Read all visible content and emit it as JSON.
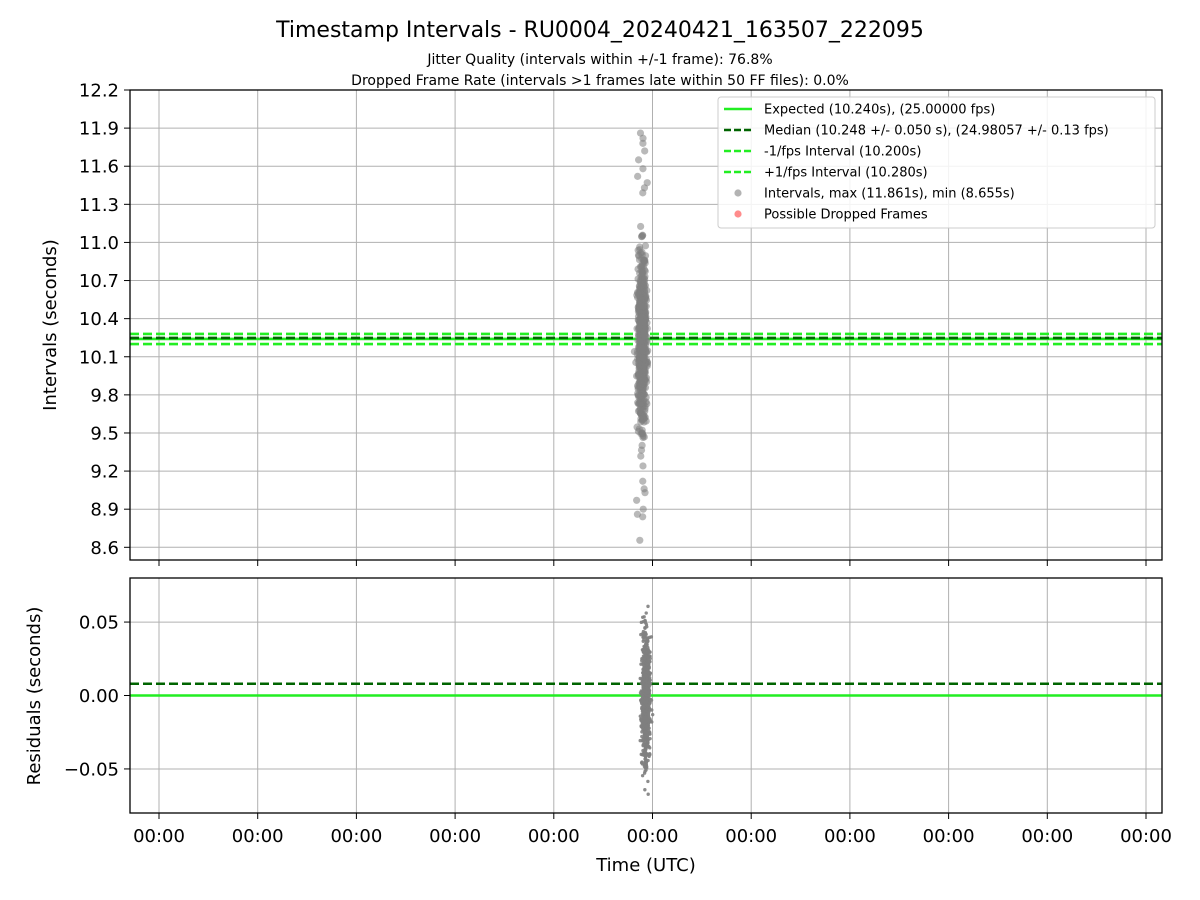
{
  "title": "Timestamp Intervals - RU0004_20240421_163507_222095",
  "subtitle_lines": [
    "Jitter Quality (intervals within +/-1 frame): 76.8%",
    "Dropped Frame Rate (intervals >1 frames late within 50 FF files): 0.0%"
  ],
  "colors": {
    "expected": "#22ee22",
    "median": "#006400",
    "fps_bounds": "#22ee22",
    "intervals": "#808080",
    "dropped": "#ff4040",
    "grid": "#b0b0b0"
  },
  "chart_data": [
    {
      "type": "scatter",
      "panel": "intervals",
      "ylabel": "Intervals (seconds)",
      "ylim": [
        8.5,
        12.2
      ],
      "yticks": [
        8.6,
        8.9,
        9.2,
        9.5,
        9.8,
        10.1,
        10.4,
        10.7,
        11.0,
        11.3,
        11.6,
        11.9,
        12.2
      ],
      "ytick_labels": [
        "8.6",
        "8.9",
        "9.2",
        "9.5",
        "9.8",
        "10.1",
        "10.4",
        "10.7",
        "11.0",
        "11.3",
        "11.6",
        "11.9",
        "12.2"
      ],
      "grid": true,
      "legend_position": "top-right",
      "reference_lines": [
        {
          "name": "Expected (10.240s), (25.00000 fps)",
          "value": 10.24,
          "style": "solid",
          "color": "#22ee22"
        },
        {
          "name": "Median (10.248 +/- 0.050 s), (24.98057 +/- 0.13 fps)",
          "value": 10.248,
          "style": "dashed",
          "color": "#006400"
        },
        {
          "name": "-1/fps Interval (10.200s)",
          "value": 10.2,
          "style": "dashed",
          "color": "#22ee22"
        },
        {
          "name": "+1/fps Interval (10.280s)",
          "value": 10.28,
          "style": "dashed",
          "color": "#22ee22"
        }
      ],
      "series": [
        {
          "name": "Intervals, max (11.861s), min (8.655s)",
          "color": "#808080",
          "x_centre": 0.0,
          "y_max": 11.861,
          "y_min": 8.655,
          "outliers_y": [
            11.861,
            11.82,
            11.78,
            11.72,
            11.65,
            11.58,
            11.52,
            11.47,
            11.43,
            11.39,
            8.655,
            8.84,
            8.86,
            8.9,
            8.97,
            9.03,
            9.06,
            9.12
          ]
        },
        {
          "name": "Possible Dropped Frames",
          "color": "#ff4040",
          "y": []
        }
      ]
    },
    {
      "type": "scatter",
      "panel": "residuals",
      "ylabel": "Residuals (seconds)",
      "xlabel": "Time (UTC)",
      "ylim": [
        -0.08,
        0.08
      ],
      "yticks": [
        -0.05,
        0.0,
        0.05
      ],
      "ytick_labels": [
        "−0.05",
        "0.00",
        "0.05"
      ],
      "xtick_labels": [
        "00:00",
        "00:00",
        "00:00",
        "00:00",
        "00:00",
        "00:00",
        "00:00",
        "00:00",
        "00:00",
        "00:00",
        "00:00"
      ],
      "grid": true,
      "reference_lines": [
        {
          "value": 0.0,
          "style": "solid",
          "color": "#22ee22"
        },
        {
          "value": 0.008,
          "style": "dashed",
          "color": "#006400"
        }
      ],
      "series": [
        {
          "color": "#808080",
          "y_max": 0.08,
          "y_min": -0.078
        }
      ]
    }
  ]
}
